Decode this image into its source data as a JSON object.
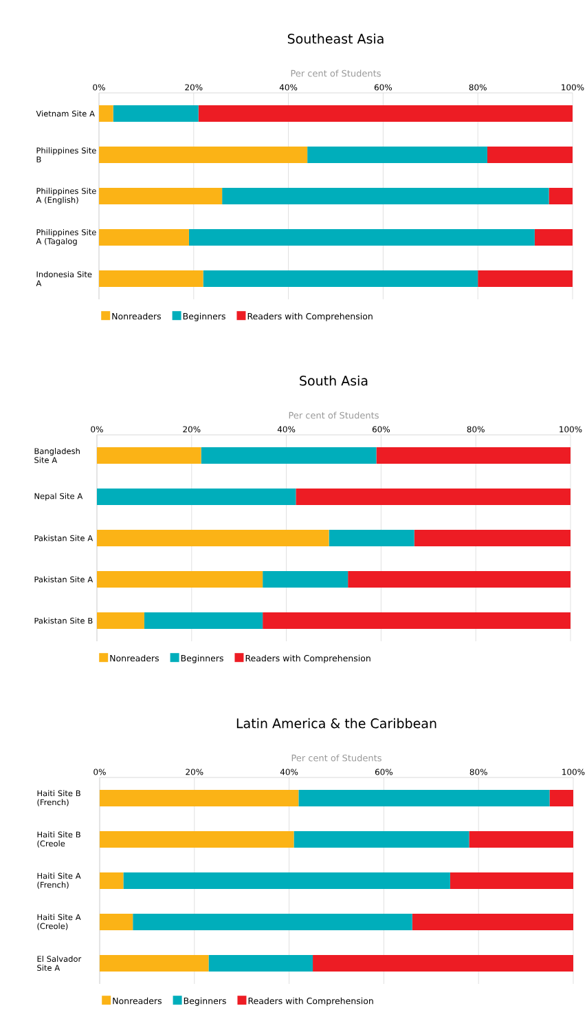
{
  "chart_data": [
    {
      "type": "bar",
      "orientation": "horizontal",
      "stacked": true,
      "title": "Southeast Asia",
      "xlabel": "Per cent of Students",
      "categories": [
        "Vietnam Site A",
        "Philippines Site B",
        "Philippines Site A (English)",
        "Philippines Site A (Tagalog",
        "Indonesia Site A"
      ],
      "series": [
        {
          "name": "Nonreaders",
          "color": "#fbb316",
          "values": [
            3,
            44,
            26,
            19,
            22
          ]
        },
        {
          "name": "Beginners",
          "color": "#00aebb",
          "values": [
            18,
            38,
            69,
            73,
            58
          ]
        },
        {
          "name": "Readers with Comprehension",
          "color": "#ed1c24",
          "values": [
            79,
            18,
            5,
            8,
            20
          ]
        }
      ],
      "xlim": [
        0,
        100
      ],
      "xticks": [
        {
          "value": 0,
          "label": "0%"
        },
        {
          "value": 20,
          "label": "20%"
        },
        {
          "value": 40,
          "label": "40%"
        },
        {
          "value": 60,
          "label": "60%"
        },
        {
          "value": 80,
          "label": "80%"
        },
        {
          "value": 100,
          "label": "100%"
        }
      ],
      "grid": "x",
      "legend": "bottom"
    },
    {
      "type": "bar",
      "orientation": "horizontal",
      "stacked": true,
      "title": "South Asia",
      "xlabel": "Per cent of Students",
      "categories": [
        "Bangladesh Site A",
        "Nepal Site A",
        "Pakistan Site A",
        "Pakistan Site A",
        "Pakistan Site B"
      ],
      "series": [
        {
          "name": "Nonreaders",
          "color": "#fbb316",
          "values": [
            22,
            0,
            49,
            35,
            10
          ]
        },
        {
          "name": "Beginners",
          "color": "#00aebb",
          "values": [
            37,
            42,
            18,
            18,
            25
          ]
        },
        {
          "name": "Readers with Comprehension",
          "color": "#ed1c24",
          "values": [
            41,
            58,
            33,
            47,
            65
          ]
        }
      ],
      "xlim": [
        0,
        100
      ],
      "xticks": [
        {
          "value": 0,
          "label": "0%"
        },
        {
          "value": 20,
          "label": "20%"
        },
        {
          "value": 40,
          "label": "40%"
        },
        {
          "value": 60,
          "label": "60%"
        },
        {
          "value": 80,
          "label": "80%"
        },
        {
          "value": 100,
          "label": "100%"
        }
      ],
      "grid": "x",
      "legend": "bottom"
    },
    {
      "type": "bar",
      "orientation": "horizontal",
      "stacked": true,
      "title": "Latin America & the Caribbean",
      "xlabel": "Per cent of Students",
      "categories": [
        "Haiti Site B (French)",
        "Haiti Site B (Creole",
        "Haiti Site A (French)",
        "Haiti Site A (Creole)",
        "El Salvador Site A"
      ],
      "series": [
        {
          "name": "Nonreaders",
          "color": "#fbb316",
          "values": [
            42,
            41,
            5,
            7,
            23
          ]
        },
        {
          "name": "Beginners",
          "color": "#00aebb",
          "values": [
            53,
            37,
            69,
            59,
            22
          ]
        },
        {
          "name": "Readers with Comprehension",
          "color": "#ed1c24",
          "values": [
            5,
            22,
            26,
            34,
            55
          ]
        }
      ],
      "xlim": [
        0,
        100
      ],
      "xticks": [
        {
          "value": 0,
          "label": "0%"
        },
        {
          "value": 20,
          "label": "20%"
        },
        {
          "value": 40,
          "label": "40%"
        },
        {
          "value": 60,
          "label": "60%"
        },
        {
          "value": 80,
          "label": "80%"
        },
        {
          "value": 100,
          "label": "100%"
        }
      ],
      "grid": "x",
      "legend": "bottom"
    }
  ]
}
